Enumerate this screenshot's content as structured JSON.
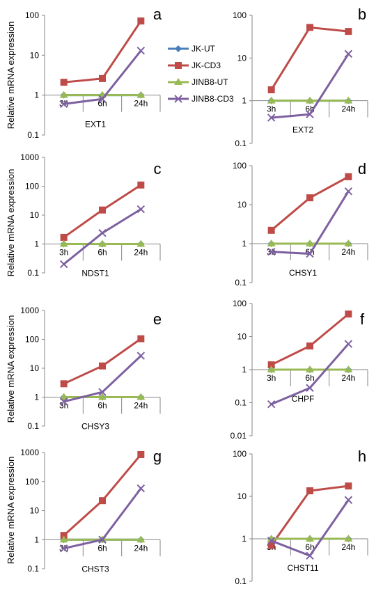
{
  "y_axis_label": "Relative mRNA expression",
  "legend": [
    {
      "name": "JK-UT",
      "color": "#4a7ebb",
      "marker": "diamond"
    },
    {
      "name": "JK-CD3",
      "color": "#be4b48",
      "marker": "square"
    },
    {
      "name": "JINB8-UT",
      "color": "#98b954",
      "marker": "triangle"
    },
    {
      "name": "JINB8-CD3",
      "color": "#7d60a0",
      "marker": "x"
    }
  ],
  "chart_data": [
    {
      "type": "line",
      "panel": "a",
      "gene": "EXT1",
      "y_scale": "log",
      "ylim": [
        0.1,
        100
      ],
      "categories": [
        "3h",
        "6h",
        "24h"
      ],
      "series": [
        {
          "name": "JK-UT",
          "values": [
            1,
            1,
            1
          ]
        },
        {
          "name": "JK-CD3",
          "values": [
            2.1,
            2.6,
            72
          ]
        },
        {
          "name": "JINB8-UT",
          "values": [
            1,
            1,
            1
          ]
        },
        {
          "name": "JINB8-CD3",
          "values": [
            0.6,
            0.8,
            13
          ]
        }
      ]
    },
    {
      "type": "line",
      "panel": "b",
      "gene": "EXT2",
      "y_scale": "log",
      "ylim": [
        0.1,
        100
      ],
      "categories": [
        "3h",
        "6h",
        "24h"
      ],
      "series": [
        {
          "name": "JK-UT",
          "values": [
            1,
            1,
            1
          ]
        },
        {
          "name": "JK-CD3",
          "values": [
            1.8,
            52,
            42
          ]
        },
        {
          "name": "JINB8-UT",
          "values": [
            1,
            1,
            1
          ]
        },
        {
          "name": "JINB8-CD3",
          "values": [
            0.4,
            0.48,
            12.5
          ]
        }
      ]
    },
    {
      "type": "line",
      "panel": "c",
      "gene": "NDST1",
      "y_scale": "log",
      "ylim": [
        0.1,
        1000
      ],
      "categories": [
        "3h",
        "6h",
        "24h"
      ],
      "series": [
        {
          "name": "JK-UT",
          "values": [
            1,
            1,
            1
          ]
        },
        {
          "name": "JK-CD3",
          "values": [
            1.7,
            15,
            110
          ]
        },
        {
          "name": "JINB8-UT",
          "values": [
            1,
            1,
            1
          ]
        },
        {
          "name": "JINB8-CD3",
          "values": [
            0.2,
            2.4,
            16
          ]
        }
      ]
    },
    {
      "type": "line",
      "panel": "d",
      "gene": "CHSY1",
      "y_scale": "log",
      "ylim": [
        0.1,
        100
      ],
      "categories": [
        "3h",
        "6h",
        "24h"
      ],
      "series": [
        {
          "name": "JK-UT",
          "values": [
            1,
            1,
            1
          ]
        },
        {
          "name": "JK-CD3",
          "values": [
            2.2,
            15,
            52
          ]
        },
        {
          "name": "JINB8-UT",
          "values": [
            1,
            1,
            1
          ]
        },
        {
          "name": "JINB8-CD3",
          "values": [
            0.62,
            0.55,
            22
          ]
        }
      ]
    },
    {
      "type": "line",
      "panel": "e",
      "gene": "CHSY3",
      "y_scale": "log",
      "ylim": [
        0.1,
        1000
      ],
      "categories": [
        "3h",
        "6h",
        "24h"
      ],
      "series": [
        {
          "name": "JK-UT",
          "values": [
            1,
            1,
            1
          ]
        },
        {
          "name": "JK-CD3",
          "values": [
            2.9,
            12,
            105
          ]
        },
        {
          "name": "JINB8-UT",
          "values": [
            1,
            1,
            1
          ]
        },
        {
          "name": "JINB8-CD3",
          "values": [
            0.7,
            1.5,
            27
          ]
        }
      ]
    },
    {
      "type": "line",
      "panel": "f",
      "gene": "CHPF",
      "y_scale": "log",
      "ylim": [
        0.01,
        100
      ],
      "categories": [
        "3h",
        "6h",
        "24h"
      ],
      "series": [
        {
          "name": "JK-UT",
          "values": [
            1,
            1,
            1
          ]
        },
        {
          "name": "JK-CD3",
          "values": [
            1.4,
            5.2,
            48
          ]
        },
        {
          "name": "JINB8-UT",
          "values": [
            1,
            1,
            1
          ]
        },
        {
          "name": "JINB8-CD3",
          "values": [
            0.09,
            0.28,
            6
          ]
        }
      ]
    },
    {
      "type": "line",
      "panel": "g",
      "gene": "CHST3",
      "y_scale": "log",
      "ylim": [
        0.1,
        1000
      ],
      "categories": [
        "3h",
        "6h",
        "24h"
      ],
      "series": [
        {
          "name": "JK-UT",
          "values": [
            1,
            1,
            1
          ]
        },
        {
          "name": "JK-CD3",
          "values": [
            1.4,
            22,
            850
          ]
        },
        {
          "name": "JINB8-UT",
          "values": [
            1,
            1,
            1
          ]
        },
        {
          "name": "JINB8-CD3",
          "values": [
            0.5,
            1.0,
            58
          ]
        }
      ]
    },
    {
      "type": "line",
      "panel": "h",
      "gene": "CHST11",
      "y_scale": "log",
      "ylim": [
        0.1,
        100
      ],
      "categories": [
        "3h",
        "6h",
        "24h"
      ],
      "series": [
        {
          "name": "JK-UT",
          "values": [
            1,
            1,
            1
          ]
        },
        {
          "name": "JK-CD3",
          "values": [
            0.7,
            13.5,
            17.5
          ]
        },
        {
          "name": "JINB8-UT",
          "values": [
            1,
            1,
            1
          ]
        },
        {
          "name": "JINB8-CD3",
          "values": [
            0.9,
            0.4,
            8.2
          ]
        }
      ]
    }
  ]
}
